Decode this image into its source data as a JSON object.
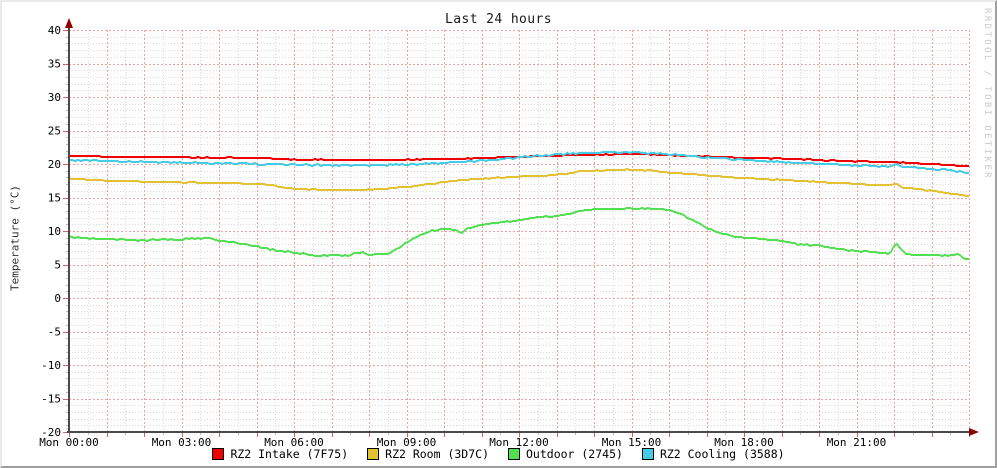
{
  "chart_data": {
    "type": "line",
    "title": "Last 24 hours",
    "ylabel": "Temperature (°C)",
    "watermark": "RRDTOOL / TOBI OETIKER",
    "grid": {
      "major_color": "#f2a0a0",
      "minor_color": "#d9d9d9",
      "axis_color": "#4a4a4a",
      "arrow_color": "#8f0000"
    },
    "x_axis": {
      "start_hour": 0,
      "end_hour": 24,
      "major_grid_hours": 1,
      "minor_grid_hours": 0.5,
      "labels": [
        {
          "hour": 0,
          "text": "Mon 00:00"
        },
        {
          "hour": 3,
          "text": "Mon 03:00"
        },
        {
          "hour": 6,
          "text": "Mon 06:00"
        },
        {
          "hour": 9,
          "text": "Mon 09:00"
        },
        {
          "hour": 12,
          "text": "Mon 12:00"
        },
        {
          "hour": 15,
          "text": "Mon 15:00"
        },
        {
          "hour": 18,
          "text": "Mon 18:00"
        },
        {
          "hour": 21,
          "text": "Mon 21:00"
        }
      ]
    },
    "y_axis": {
      "min": -20,
      "max": 40,
      "major_step": 5,
      "minor_step": 1,
      "tick_labels": [
        40,
        35,
        30,
        25,
        20,
        15,
        10,
        5,
        0,
        -5,
        -10,
        -15,
        -20
      ]
    },
    "series": [
      {
        "name": "RZ2 Intake (7F75)",
        "color": "#f00000",
        "jitter": 0.05,
        "points": [
          [
            0,
            21.2
          ],
          [
            1,
            21.1
          ],
          [
            2,
            21.05
          ],
          [
            3,
            21.0
          ],
          [
            4,
            20.95
          ],
          [
            5,
            20.9
          ],
          [
            5.3,
            20.85
          ],
          [
            5.6,
            20.7
          ],
          [
            6.5,
            20.65
          ],
          [
            7.5,
            20.6
          ],
          [
            8.5,
            20.6
          ],
          [
            9.5,
            20.7
          ],
          [
            10.5,
            20.8
          ],
          [
            11.5,
            20.95
          ],
          [
            12,
            21.05
          ],
          [
            12.5,
            21.15
          ],
          [
            13,
            21.25
          ],
          [
            13.5,
            21.35
          ],
          [
            14,
            21.4
          ],
          [
            15,
            21.5
          ],
          [
            15.6,
            21.45
          ],
          [
            16,
            21.3
          ],
          [
            17,
            21.1
          ],
          [
            18,
            20.9
          ],
          [
            19,
            20.8
          ],
          [
            20,
            20.6
          ],
          [
            21,
            20.4
          ],
          [
            22,
            20.25
          ],
          [
            22.6,
            20.2
          ],
          [
            22.8,
            20.0
          ],
          [
            23.4,
            19.9
          ],
          [
            24,
            19.6
          ]
        ]
      },
      {
        "name": "RZ2 Room (3D7C)",
        "color": "#e2c133",
        "jitter": 0.06,
        "points": [
          [
            0,
            17.8
          ],
          [
            0.5,
            17.7
          ],
          [
            1,
            17.5
          ],
          [
            2,
            17.35
          ],
          [
            3,
            17.25
          ],
          [
            4,
            17.2
          ],
          [
            5,
            17.0
          ],
          [
            5.3,
            16.9
          ],
          [
            5.7,
            16.5
          ],
          [
            6,
            16.3
          ],
          [
            6.5,
            16.15
          ],
          [
            7.5,
            16.1
          ],
          [
            8,
            16.2
          ],
          [
            8.5,
            16.35
          ],
          [
            9,
            16.6
          ],
          [
            9.5,
            16.9
          ],
          [
            10,
            17.3
          ],
          [
            10.5,
            17.6
          ],
          [
            11,
            17.8
          ],
          [
            12,
            18.1
          ],
          [
            13,
            18.4
          ],
          [
            13.3,
            18.5
          ],
          [
            13.6,
            18.9
          ],
          [
            14,
            19.0
          ],
          [
            15,
            19.15
          ],
          [
            15.5,
            19.0
          ],
          [
            16,
            18.75
          ],
          [
            17,
            18.3
          ],
          [
            18,
            17.9
          ],
          [
            19,
            17.6
          ],
          [
            20,
            17.3
          ],
          [
            21,
            17.0
          ],
          [
            21.9,
            16.8
          ],
          [
            22.05,
            17.25
          ],
          [
            22.2,
            16.5
          ],
          [
            22.6,
            16.3
          ],
          [
            23,
            16.0
          ],
          [
            23.5,
            15.6
          ],
          [
            24,
            15.2
          ]
        ]
      },
      {
        "name": "Outdoor (2745)",
        "color": "#52e052",
        "jitter": 0.09,
        "points": [
          [
            0,
            9.2
          ],
          [
            0.3,
            8.9
          ],
          [
            1,
            8.8
          ],
          [
            1.5,
            8.7
          ],
          [
            2,
            8.6
          ],
          [
            2.4,
            8.75
          ],
          [
            3,
            8.75
          ],
          [
            3.4,
            8.9
          ],
          [
            3.7,
            9.0
          ],
          [
            4,
            8.6
          ],
          [
            4.5,
            8.2
          ],
          [
            5,
            7.7
          ],
          [
            5.5,
            7.1
          ],
          [
            6,
            6.8
          ],
          [
            6.6,
            6.3
          ],
          [
            7,
            6.4
          ],
          [
            7.4,
            6.3
          ],
          [
            7.8,
            6.9
          ],
          [
            8,
            6.5
          ],
          [
            8.5,
            6.6
          ],
          [
            8.8,
            7.4
          ],
          [
            9,
            8.3
          ],
          [
            9.3,
            9.2
          ],
          [
            9.7,
            10.1
          ],
          [
            10,
            10.3
          ],
          [
            10.3,
            10.2
          ],
          [
            10.45,
            9.6
          ],
          [
            10.6,
            10.4
          ],
          [
            11,
            10.9
          ],
          [
            11.5,
            11.25
          ],
          [
            12,
            11.6
          ],
          [
            12.5,
            12.0
          ],
          [
            13,
            12.2
          ],
          [
            13.4,
            12.6
          ],
          [
            13.7,
            13.1
          ],
          [
            14,
            13.2
          ],
          [
            14.5,
            13.3
          ],
          [
            15,
            13.4
          ],
          [
            15.5,
            13.35
          ],
          [
            16,
            13.2
          ],
          [
            16.3,
            12.6
          ],
          [
            16.7,
            11.4
          ],
          [
            17,
            10.5
          ],
          [
            17.4,
            9.6
          ],
          [
            17.8,
            9.1
          ],
          [
            18.3,
            8.9
          ],
          [
            19,
            8.5
          ],
          [
            19.5,
            8.0
          ],
          [
            20,
            7.8
          ],
          [
            20.5,
            7.4
          ],
          [
            21,
            7.0
          ],
          [
            21.5,
            6.8
          ],
          [
            21.9,
            6.7
          ],
          [
            22.05,
            8.2
          ],
          [
            22.3,
            6.6
          ],
          [
            22.7,
            6.4
          ],
          [
            23.2,
            6.4
          ],
          [
            23.5,
            6.3
          ],
          [
            23.7,
            6.6
          ],
          [
            23.85,
            6.0
          ],
          [
            24,
            5.8
          ]
        ]
      },
      {
        "name": "RZ2 Cooling (3588)",
        "color": "#45cbe5",
        "jitter": 0.1,
        "points": [
          [
            0,
            20.6
          ],
          [
            1,
            20.45
          ],
          [
            2,
            20.3
          ],
          [
            3,
            20.2
          ],
          [
            4,
            20.1
          ],
          [
            5,
            20.0
          ],
          [
            6,
            19.9
          ],
          [
            7,
            19.8
          ],
          [
            8,
            19.8
          ],
          [
            9,
            19.9
          ],
          [
            9.5,
            20.0
          ],
          [
            10,
            20.15
          ],
          [
            10.5,
            20.3
          ],
          [
            11,
            20.5
          ],
          [
            11.5,
            20.7
          ],
          [
            12,
            21.0
          ],
          [
            12.5,
            21.2
          ],
          [
            13,
            21.4
          ],
          [
            13.5,
            21.6
          ],
          [
            14.5,
            21.7
          ],
          [
            15,
            21.75
          ],
          [
            15.5,
            21.6
          ],
          [
            16,
            21.4
          ],
          [
            17,
            21.0
          ],
          [
            18,
            20.6
          ],
          [
            19,
            20.3
          ],
          [
            20,
            20.0
          ],
          [
            21,
            19.8
          ],
          [
            21.95,
            19.6
          ],
          [
            22.05,
            20.3
          ],
          [
            22.15,
            19.7
          ],
          [
            22.5,
            19.5
          ],
          [
            23,
            19.3
          ],
          [
            23.5,
            19.05
          ],
          [
            24,
            18.6
          ]
        ]
      }
    ]
  }
}
